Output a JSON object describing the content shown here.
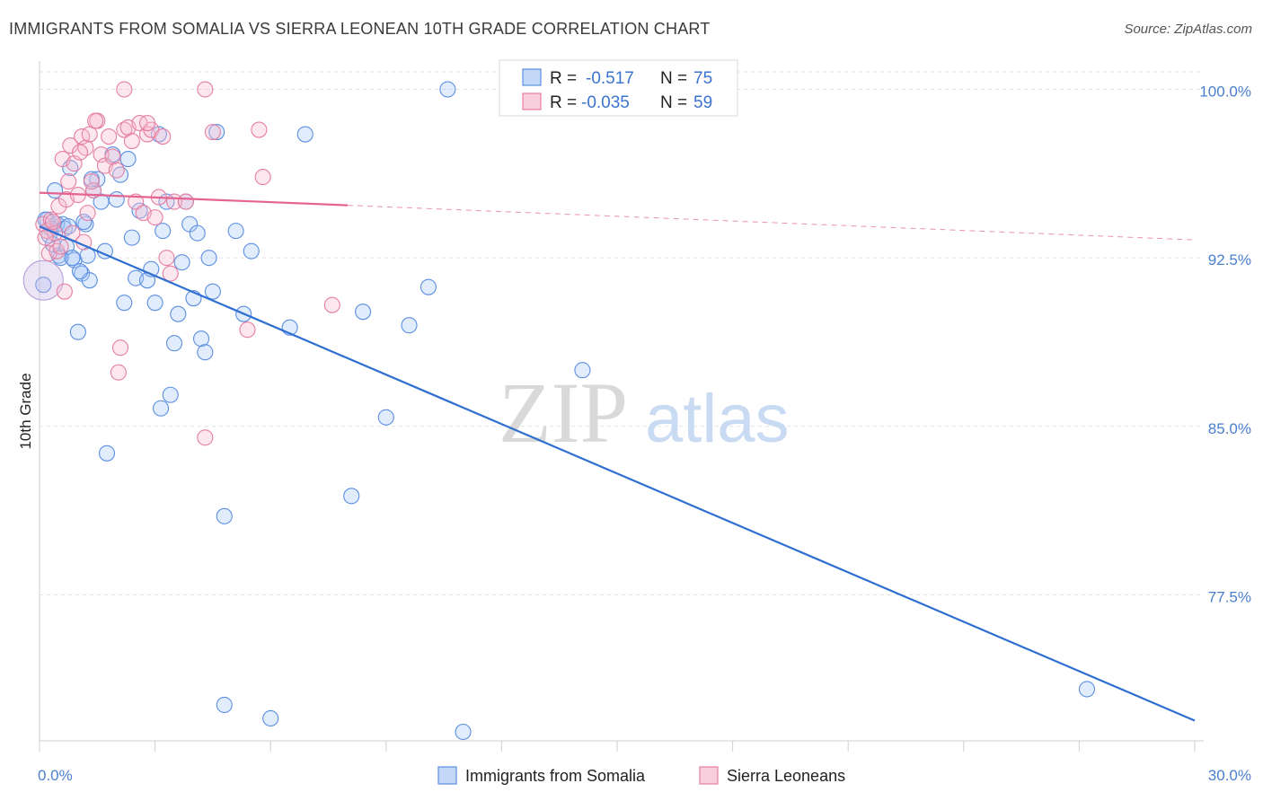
{
  "title": "IMMIGRANTS FROM SOMALIA VS SIERRA LEONEAN 10TH GRADE CORRELATION CHART",
  "source": "Source: ZipAtlas.com",
  "watermark": {
    "zip": "ZIP",
    "atlas": "atlas"
  },
  "colors": {
    "blue": "#5b8fe0",
    "blue_fill": "rgba(170,200,245,0.35)",
    "blue_line": "#2f6fd0",
    "pink": "#e57fa3",
    "pink_fill": "rgba(245,185,205,0.35)",
    "pink_line": "#e56590",
    "grid": "#e3e3e3",
    "tick_text": "#4a7fd0"
  },
  "legend": {
    "rows": [
      {
        "r_label": "R =",
        "r_value": "-0.517",
        "n_label": "N =",
        "n_value": "75"
      },
      {
        "r_label": "R =",
        "r_value": "-0.035",
        "n_label": "N =",
        "n_value": "59"
      }
    ]
  },
  "chart_data": {
    "type": "scatter",
    "ylabel": "10th Grade",
    "x_range": [
      0,
      30
    ],
    "y_range": [
      71.0,
      101.5
    ],
    "x_ticks": [
      {
        "value": 0,
        "label": "0.0%"
      },
      {
        "value": 30,
        "label": "30.0%"
      }
    ],
    "y_ticks": [
      {
        "value": 100.0,
        "label": "100.0%"
      },
      {
        "value": 92.5,
        "label": "92.5%"
      },
      {
        "value": 85.0,
        "label": "85.0%"
      },
      {
        "value": 77.5,
        "label": "77.5%"
      }
    ],
    "series": [
      {
        "name": "Immigrants from Somalia",
        "r": -0.517,
        "n": 75,
        "trend": {
          "x0": 0,
          "y0": 93.9,
          "x1": 30,
          "y1": 71.9,
          "solid_until": 30
        },
        "points": [
          [
            0.1,
            91.3
          ],
          [
            0.2,
            94.2
          ],
          [
            0.3,
            93.8
          ],
          [
            0.4,
            95.5
          ],
          [
            0.5,
            92.6
          ],
          [
            0.6,
            94.0
          ],
          [
            0.7,
            93.0
          ],
          [
            0.8,
            96.5
          ],
          [
            0.9,
            92.4
          ],
          [
            1.0,
            89.2
          ],
          [
            1.1,
            91.8
          ],
          [
            1.2,
            94.0
          ],
          [
            1.3,
            91.5
          ],
          [
            1.4,
            95.5
          ],
          [
            1.5,
            96.0
          ],
          [
            1.6,
            95.0
          ],
          [
            1.7,
            92.8
          ],
          [
            1.9,
            97.1
          ],
          [
            2.0,
            95.1
          ],
          [
            2.1,
            96.2
          ],
          [
            2.2,
            90.5
          ],
          [
            2.3,
            96.9
          ],
          [
            2.4,
            93.4
          ],
          [
            2.5,
            91.6
          ],
          [
            2.6,
            94.6
          ],
          [
            2.8,
            91.5
          ],
          [
            2.9,
            92.0
          ],
          [
            3.0,
            90.5
          ],
          [
            3.1,
            98.0
          ],
          [
            3.2,
            93.7
          ],
          [
            3.3,
            95.0
          ],
          [
            3.5,
            88.7
          ],
          [
            3.6,
            90.0
          ],
          [
            3.7,
            92.3
          ],
          [
            3.8,
            95.0
          ],
          [
            3.9,
            94.0
          ],
          [
            4.0,
            90.7
          ],
          [
            4.1,
            93.6
          ],
          [
            4.2,
            88.9
          ],
          [
            4.4,
            92.5
          ],
          [
            4.5,
            91.0
          ],
          [
            4.3,
            88.3
          ],
          [
            4.6,
            98.1
          ],
          [
            3.4,
            86.4
          ],
          [
            3.15,
            85.8
          ],
          [
            4.8,
            81.0
          ],
          [
            4.8,
            72.6
          ],
          [
            5.1,
            93.7
          ],
          [
            5.3,
            90.0
          ],
          [
            5.5,
            92.8
          ],
          [
            6.0,
            72.0
          ],
          [
            6.5,
            89.4
          ],
          [
            6.9,
            98.0
          ],
          [
            8.1,
            81.9
          ],
          [
            8.4,
            90.1
          ],
          [
            9.0,
            85.4
          ],
          [
            9.6,
            89.5
          ],
          [
            10.1,
            91.2
          ],
          [
            10.6,
            100.0
          ],
          [
            11.0,
            71.4
          ],
          [
            14.1,
            87.5
          ],
          [
            27.2,
            73.3
          ],
          [
            0.15,
            94.2
          ],
          [
            0.25,
            93.5
          ],
          [
            0.35,
            93.1
          ],
          [
            0.45,
            94.0
          ],
          [
            0.55,
            92.5
          ],
          [
            0.65,
            93.8
          ],
          [
            0.75,
            93.9
          ],
          [
            0.85,
            92.5
          ],
          [
            1.05,
            91.9
          ],
          [
            1.15,
            94.1
          ],
          [
            1.25,
            92.6
          ],
          [
            1.35,
            96.0
          ],
          [
            1.75,
            83.8
          ]
        ]
      },
      {
        "name": "Sierra Leoneans",
        "r": -0.035,
        "n": 59,
        "trend": {
          "x0": 0,
          "y0": 95.4,
          "x1": 30,
          "y1": 93.3,
          "solid_until": 8.0
        },
        "points": [
          [
            0.1,
            94.0
          ],
          [
            0.2,
            93.7
          ],
          [
            0.3,
            94.2
          ],
          [
            0.4,
            93.6
          ],
          [
            0.5,
            94.8
          ],
          [
            0.6,
            96.9
          ],
          [
            0.7,
            95.1
          ],
          [
            0.8,
            97.5
          ],
          [
            0.9,
            96.7
          ],
          [
            1.0,
            95.3
          ],
          [
            1.1,
            97.9
          ],
          [
            1.2,
            97.4
          ],
          [
            1.3,
            98.0
          ],
          [
            1.4,
            95.5
          ],
          [
            1.5,
            98.6
          ],
          [
            1.6,
            97.1
          ],
          [
            1.7,
            96.6
          ],
          [
            1.8,
            97.9
          ],
          [
            1.9,
            97.0
          ],
          [
            2.0,
            96.4
          ],
          [
            2.1,
            88.5
          ],
          [
            2.2,
            98.2
          ],
          [
            2.3,
            98.3
          ],
          [
            2.4,
            97.7
          ],
          [
            2.5,
            95.0
          ],
          [
            2.6,
            98.5
          ],
          [
            2.7,
            94.5
          ],
          [
            2.8,
            98.0
          ],
          [
            2.9,
            98.2
          ],
          [
            3.0,
            94.3
          ],
          [
            3.1,
            95.2
          ],
          [
            3.2,
            97.9
          ],
          [
            3.3,
            92.5
          ],
          [
            3.4,
            91.8
          ],
          [
            3.5,
            95.0
          ],
          [
            2.2,
            100.0
          ],
          [
            4.3,
            100.0
          ],
          [
            4.5,
            98.1
          ],
          [
            5.7,
            98.2
          ],
          [
            5.8,
            96.1
          ],
          [
            5.4,
            89.3
          ],
          [
            7.6,
            90.4
          ],
          [
            4.3,
            84.5
          ],
          [
            0.15,
            93.4
          ],
          [
            0.25,
            92.7
          ],
          [
            0.35,
            94.1
          ],
          [
            0.45,
            92.8
          ],
          [
            0.55,
            93.0
          ],
          [
            0.65,
            91.0
          ],
          [
            0.75,
            95.9
          ],
          [
            0.85,
            93.6
          ],
          [
            1.05,
            97.2
          ],
          [
            1.15,
            93.2
          ],
          [
            1.25,
            94.5
          ],
          [
            1.35,
            95.9
          ],
          [
            1.45,
            98.6
          ],
          [
            2.05,
            87.4
          ],
          [
            2.8,
            98.5
          ],
          [
            3.8,
            95.0
          ]
        ]
      }
    ],
    "grid": true,
    "legend_placement": "top-center"
  }
}
